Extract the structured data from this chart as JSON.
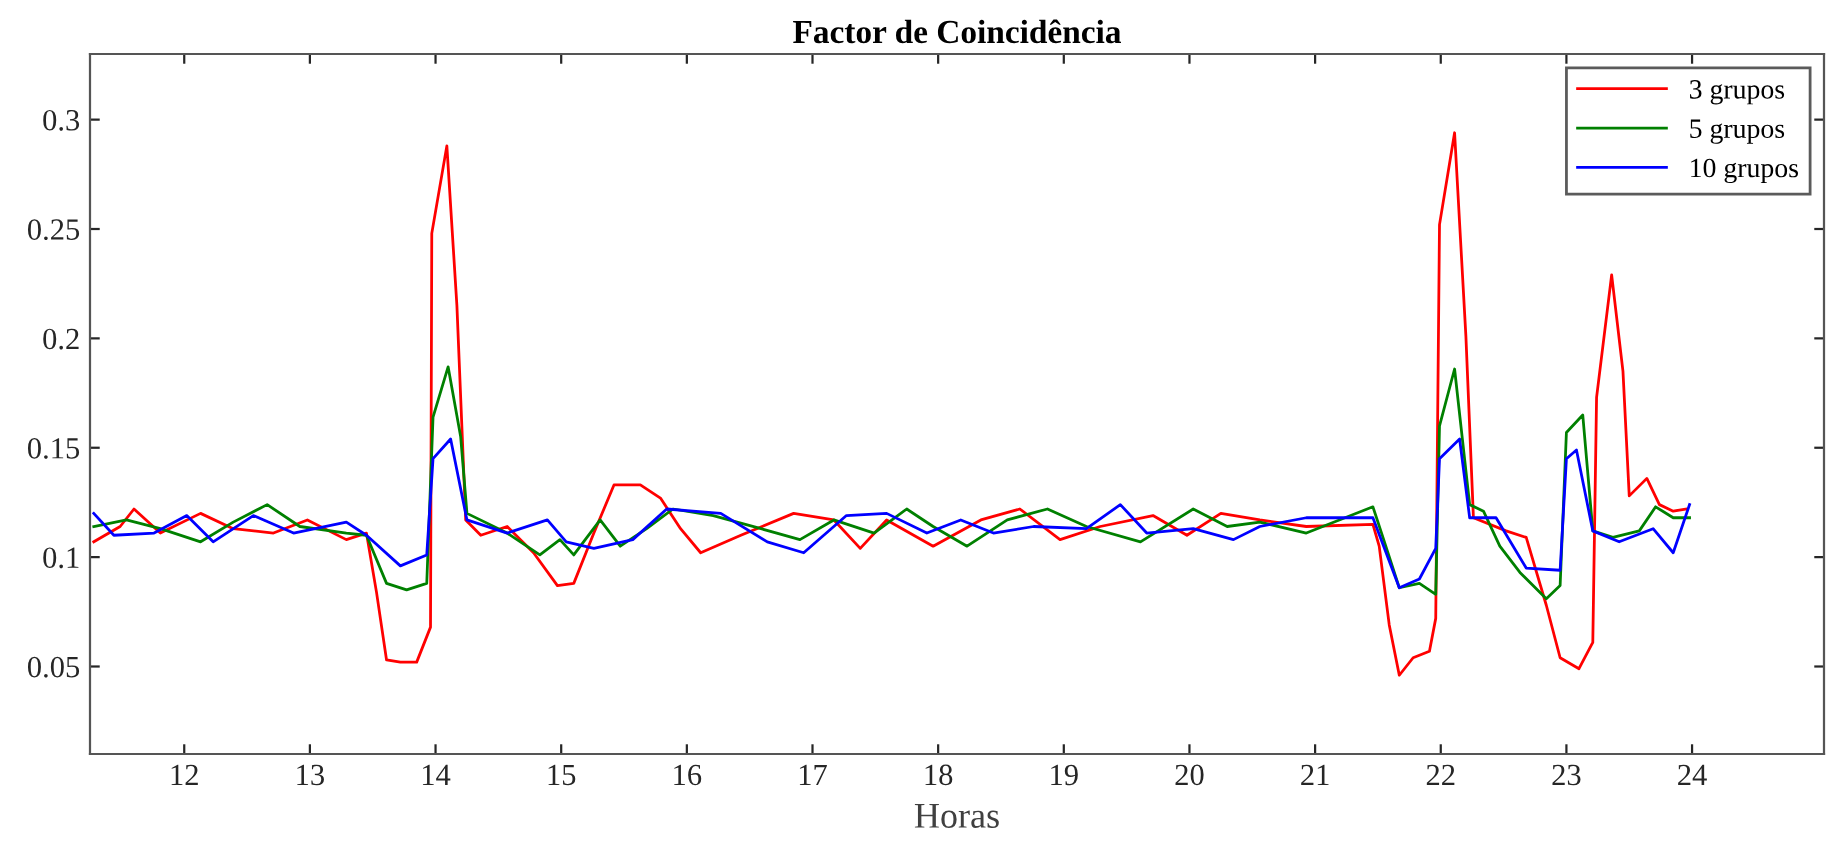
{
  "chart_data": {
    "type": "line",
    "title": "Factor de Coincidência",
    "xlabel": "Horas",
    "xlim": [
      11.25,
      25.05
    ],
    "ylim": [
      0.01,
      0.33
    ],
    "xticks": [
      12,
      13,
      14,
      15,
      16,
      17,
      18,
      19,
      20,
      21,
      22,
      23,
      24
    ],
    "yticks": [
      0.05,
      0.1,
      0.15,
      0.2,
      0.25,
      0.3
    ],
    "grid": false,
    "legend": "top right",
    "marker": "none",
    "line_style": "solid",
    "series": [
      {
        "name": "3 grupos",
        "color": "#ff0000",
        "x": [
          11.28,
          11.49,
          11.6,
          11.81,
          12.13,
          12.39,
          12.71,
          12.98,
          13.29,
          13.45,
          13.53,
          13.61,
          13.72,
          13.85,
          13.96,
          13.97,
          14.09,
          14.17,
          14.24,
          14.36,
          14.57,
          14.78,
          14.97,
          15.1,
          15.26,
          15.42,
          15.63,
          15.79,
          15.95,
          16.11,
          16.43,
          16.85,
          17.17,
          17.38,
          17.59,
          17.96,
          18.34,
          18.65,
          18.97,
          19.29,
          19.71,
          19.98,
          20.25,
          20.56,
          20.93,
          21.46,
          21.51,
          21.59,
          21.67,
          21.78,
          21.91,
          21.96,
          21.99,
          22.11,
          22.2,
          22.26,
          22.52,
          22.68,
          22.84,
          22.95,
          23.1,
          23.21,
          23.24,
          23.36,
          23.45,
          23.5,
          23.64,
          23.74,
          23.85,
          23.95
        ],
        "values": [
          0.107,
          0.114,
          0.122,
          0.111,
          0.12,
          0.113,
          0.111,
          0.117,
          0.108,
          0.111,
          0.084,
          0.053,
          0.052,
          0.052,
          0.068,
          0.248,
          0.288,
          0.215,
          0.117,
          0.11,
          0.114,
          0.102,
          0.087,
          0.088,
          0.111,
          0.133,
          0.133,
          0.127,
          0.113,
          0.102,
          0.11,
          0.12,
          0.117,
          0.104,
          0.117,
          0.105,
          0.117,
          0.122,
          0.108,
          0.114,
          0.119,
          0.11,
          0.12,
          0.117,
          0.114,
          0.115,
          0.105,
          0.069,
          0.046,
          0.054,
          0.057,
          0.072,
          0.252,
          0.294,
          0.201,
          0.118,
          0.112,
          0.109,
          0.078,
          0.054,
          0.049,
          0.061,
          0.173,
          0.229,
          0.185,
          0.128,
          0.136,
          0.124,
          0.121,
          0.122
        ]
      },
      {
        "name": "5 grupos",
        "color": "#008000",
        "x": [
          11.28,
          11.54,
          11.81,
          12.13,
          12.39,
          12.66,
          12.92,
          13.29,
          13.45,
          13.61,
          13.77,
          13.93,
          13.98,
          14.1,
          14.2,
          14.25,
          14.57,
          14.83,
          14.99,
          15.1,
          15.31,
          15.47,
          15.68,
          15.89,
          16.21,
          16.59,
          16.9,
          17.17,
          17.49,
          17.75,
          17.96,
          18.23,
          18.55,
          18.87,
          19.18,
          19.61,
          20.03,
          20.3,
          20.56,
          20.93,
          21.46,
          21.54,
          21.67,
          21.83,
          21.96,
          21.99,
          22.11,
          22.23,
          22.34,
          22.47,
          22.63,
          22.84,
          22.95,
          23.0,
          23.13,
          23.21,
          23.37,
          23.58,
          23.71,
          23.85,
          23.98
        ],
        "values": [
          0.114,
          0.117,
          0.113,
          0.107,
          0.116,
          0.124,
          0.114,
          0.111,
          0.11,
          0.088,
          0.085,
          0.088,
          0.164,
          0.187,
          0.155,
          0.12,
          0.111,
          0.101,
          0.108,
          0.101,
          0.117,
          0.105,
          0.113,
          0.122,
          0.119,
          0.113,
          0.108,
          0.117,
          0.111,
          0.122,
          0.114,
          0.105,
          0.117,
          0.122,
          0.114,
          0.107,
          0.122,
          0.114,
          0.116,
          0.111,
          0.123,
          0.109,
          0.086,
          0.088,
          0.083,
          0.16,
          0.186,
          0.124,
          0.121,
          0.105,
          0.093,
          0.081,
          0.087,
          0.157,
          0.165,
          0.112,
          0.109,
          0.112,
          0.123,
          0.118,
          0.118
        ]
      },
      {
        "name": "10 grupos",
        "color": "#0000ff",
        "x": [
          11.28,
          11.44,
          11.76,
          12.02,
          12.23,
          12.55,
          12.87,
          13.29,
          13.45,
          13.72,
          13.93,
          13.98,
          14.12,
          14.25,
          14.57,
          14.89,
          15.04,
          15.26,
          15.57,
          15.84,
          16.27,
          16.64,
          16.93,
          17.27,
          17.59,
          17.91,
          18.18,
          18.44,
          18.76,
          19.18,
          19.45,
          19.66,
          20.03,
          20.35,
          20.56,
          20.93,
          21.46,
          21.67,
          21.83,
          21.96,
          21.99,
          22.15,
          22.23,
          22.44,
          22.68,
          22.95,
          23.0,
          23.08,
          23.21,
          23.42,
          23.69,
          23.85,
          23.98
        ],
        "values": [
          0.12,
          0.11,
          0.111,
          0.119,
          0.107,
          0.119,
          0.111,
          0.116,
          0.11,
          0.096,
          0.101,
          0.145,
          0.154,
          0.117,
          0.111,
          0.117,
          0.107,
          0.104,
          0.108,
          0.122,
          0.12,
          0.107,
          0.102,
          0.119,
          0.12,
          0.111,
          0.117,
          0.111,
          0.114,
          0.113,
          0.124,
          0.111,
          0.113,
          0.108,
          0.114,
          0.118,
          0.118,
          0.086,
          0.09,
          0.104,
          0.145,
          0.154,
          0.118,
          0.118,
          0.095,
          0.094,
          0.145,
          0.149,
          0.112,
          0.107,
          0.113,
          0.102,
          0.124
        ]
      }
    ]
  }
}
